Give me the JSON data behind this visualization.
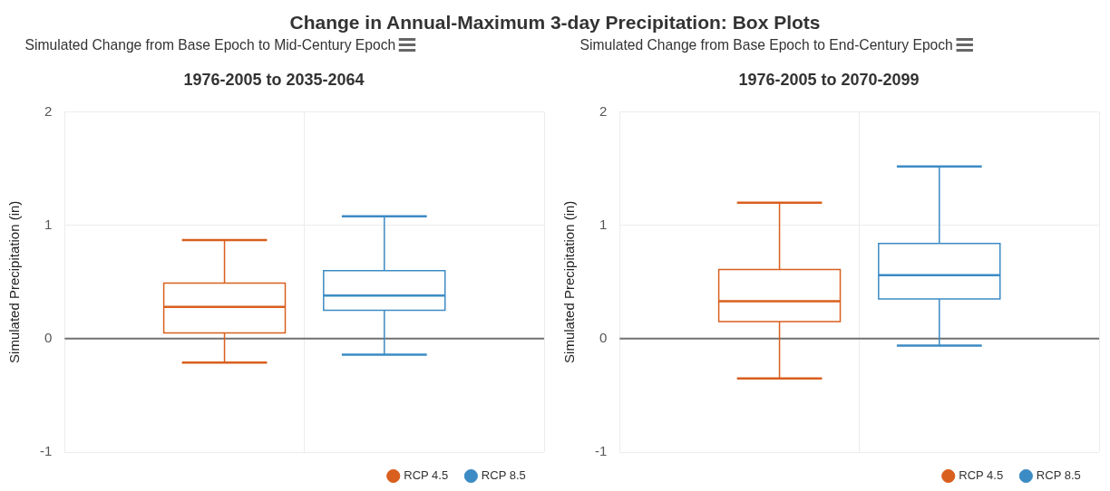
{
  "chart_data": [
    {
      "type": "box",
      "title": "Simulated Change from Base Epoch to Mid-Century Epoch",
      "subtitle": "1976-2005 to 2035-2064",
      "ylabel": "Simulated Precipitation (in)",
      "categories": [
        null
      ],
      "annotations": [
        "Change in Annual-Maximum 3-day Precipitation: Box Plots"
      ],
      "series": [
        {
          "name": "RCP 4.5",
          "color": "#d95f1e",
          "boxes": [
            {
              "low": -0.21,
              "q1": 0.05,
              "median": 0.28,
              "q3": 0.49,
              "high": 0.87
            }
          ]
        },
        {
          "name": "RCP 8.5",
          "color": "#3d8bc4",
          "boxes": [
            {
              "low": -0.14,
              "q1": 0.25,
              "median": 0.38,
              "q3": 0.6,
              "high": 1.08
            }
          ]
        }
      ],
      "ylim": [
        -1,
        2
      ],
      "yticks": [
        -1,
        0,
        1,
        2
      ],
      "ref_lines": [
        {
          "axis": "y",
          "value": 0,
          "color": "#707070"
        }
      ],
      "grid": true,
      "legend": "bottom right",
      "tick_labels": "y"
    },
    {
      "type": "box",
      "title": "Simulated Change from Base Epoch to End-Century Epoch",
      "subtitle": "1976-2005 to 2070-2099",
      "ylabel": "Simulated Precipitation (in)",
      "categories": [
        null
      ],
      "series": [
        {
          "name": "RCP 4.5",
          "color": "#d95f1e",
          "boxes": [
            {
              "low": -0.35,
              "q1": 0.15,
              "median": 0.33,
              "q3": 0.61,
              "high": 1.2
            }
          ]
        },
        {
          "name": "RCP 8.5",
          "color": "#3d8bc4",
          "boxes": [
            {
              "low": -0.06,
              "q1": 0.35,
              "median": 0.56,
              "q3": 0.84,
              "high": 1.52
            }
          ]
        }
      ],
      "ylim": [
        -1,
        2
      ],
      "yticks": [
        -1,
        0,
        1,
        2
      ],
      "ref_lines": [
        {
          "axis": "y",
          "value": 0,
          "color": "#707070"
        }
      ],
      "grid": true,
      "legend": "bottom right",
      "tick_labels": "y"
    }
  ]
}
